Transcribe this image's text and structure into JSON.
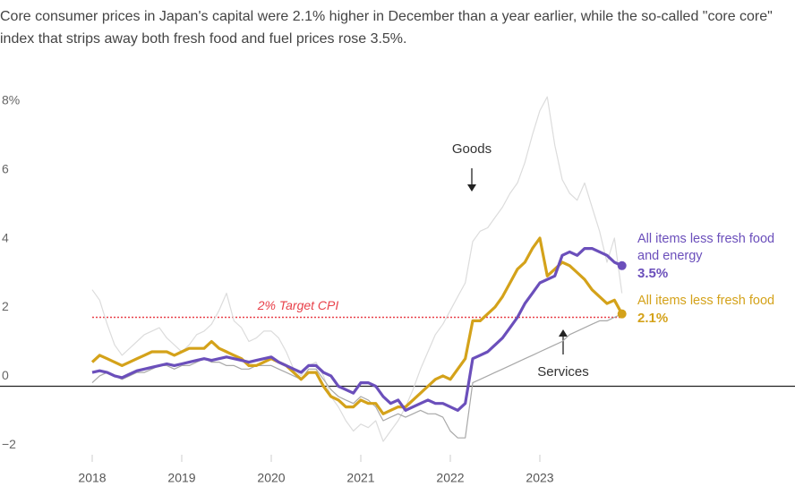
{
  "chart_data": {
    "type": "line",
    "subtitle": "Core consumer prices in Japan's capital were 2.1% higher in December than a year earlier, while the so-called \"core core\" index that strips away both fresh food and fuel prices rose 3.5%.",
    "x": [
      2018,
      2018.083,
      2018.167,
      2018.25,
      2018.333,
      2018.417,
      2018.5,
      2018.583,
      2018.667,
      2018.75,
      2018.833,
      2018.917,
      2019,
      2019.083,
      2019.167,
      2019.25,
      2019.333,
      2019.417,
      2019.5,
      2019.583,
      2019.667,
      2019.75,
      2019.833,
      2019.917,
      2020,
      2020.083,
      2020.167,
      2020.25,
      2020.333,
      2020.417,
      2020.5,
      2020.583,
      2020.667,
      2020.75,
      2020.833,
      2020.917,
      2021,
      2021.083,
      2021.167,
      2021.25,
      2021.333,
      2021.417,
      2021.5,
      2021.583,
      2021.667,
      2021.75,
      2021.833,
      2021.917,
      2022,
      2022.083,
      2022.167,
      2022.25,
      2022.333,
      2022.417,
      2022.5,
      2022.583,
      2022.667,
      2022.75,
      2022.833,
      2022.917,
      2023,
      2023.083,
      2023.167,
      2023.25,
      2023.333,
      2023.417,
      2023.5,
      2023.583,
      2023.667,
      2023.75,
      2023.833,
      2023.917
    ],
    "xlim": [
      2017,
      2024
    ],
    "xticks": [
      2018,
      2019,
      2020,
      2021,
      2022,
      2023
    ],
    "ylim": [
      -2.3,
      8.9
    ],
    "yticks": [
      {
        "value": 8,
        "label": "8%"
      },
      6,
      4,
      2,
      0,
      {
        "value": -2,
        "label": "−2"
      }
    ],
    "grid": false,
    "target": {
      "value": 2,
      "label": "2% Target CPI",
      "color": "#e8414a"
    },
    "series": [
      {
        "name": "Goods",
        "color": "#dcdcdc",
        "values": [
          2.8,
          2.5,
          1.8,
          1.2,
          0.9,
          1.1,
          1.3,
          1.5,
          1.6,
          1.7,
          1.4,
          1.2,
          1.0,
          1.2,
          1.5,
          1.6,
          1.8,
          2.2,
          2.7,
          1.9,
          1.7,
          1.3,
          1.4,
          1.6,
          1.6,
          1.4,
          1.0,
          0.5,
          0.3,
          0.6,
          0.7,
          0.3,
          -0.3,
          -0.6,
          -1.0,
          -1.3,
          -1.1,
          -1.2,
          -1.0,
          -1.6,
          -1.3,
          -1.0,
          -0.6,
          -0.1,
          0.5,
          1.0,
          1.5,
          1.8,
          2.2,
          2.6,
          3.0,
          4.2,
          4.5,
          4.6,
          4.9,
          5.2,
          5.6,
          5.9,
          6.5,
          7.3,
          8.0,
          8.4,
          7.0,
          6.0,
          5.6,
          5.4,
          5.9,
          5.2,
          4.5,
          3.6,
          4.3,
          2.7
        ]
      },
      {
        "name": "Services",
        "color": "#a8a8a8",
        "values": [
          0.1,
          0.3,
          0.4,
          0.3,
          0.2,
          0.3,
          0.4,
          0.4,
          0.5,
          0.6,
          0.6,
          0.5,
          0.6,
          0.6,
          0.7,
          0.8,
          0.7,
          0.7,
          0.6,
          0.6,
          0.5,
          0.5,
          0.6,
          0.6,
          0.6,
          0.5,
          0.4,
          0.3,
          0.2,
          0.5,
          0.5,
          0.2,
          -0.1,
          -0.3,
          -0.4,
          -0.5,
          -0.3,
          -0.4,
          -0.6,
          -1.0,
          -0.9,
          -0.8,
          -0.9,
          -0.8,
          -0.7,
          -0.8,
          -0.8,
          -0.9,
          -1.3,
          -1.5,
          -1.5,
          0.1,
          0.2,
          0.3,
          0.4,
          0.5,
          0.6,
          0.7,
          0.8,
          0.9,
          1.0,
          1.1,
          1.2,
          1.3,
          1.5,
          1.6,
          1.7,
          1.8,
          1.9,
          1.9,
          2.0,
          2.1
        ]
      },
      {
        "name": "All items less fresh food",
        "color": "#d4a21a",
        "end_label": "2.1%",
        "values": [
          0.7,
          0.9,
          0.8,
          0.7,
          0.6,
          0.7,
          0.8,
          0.9,
          1.0,
          1.0,
          1.0,
          0.9,
          1.0,
          1.1,
          1.1,
          1.1,
          1.3,
          1.1,
          1.0,
          0.9,
          0.8,
          0.6,
          0.6,
          0.7,
          0.8,
          0.7,
          0.6,
          0.4,
          0.2,
          0.4,
          0.4,
          0.0,
          -0.3,
          -0.4,
          -0.6,
          -0.6,
          -0.4,
          -0.5,
          -0.5,
          -0.8,
          -0.7,
          -0.6,
          -0.6,
          -0.4,
          -0.2,
          0.0,
          0.2,
          0.3,
          0.2,
          0.5,
          0.8,
          1.9,
          1.9,
          2.1,
          2.3,
          2.6,
          3.0,
          3.4,
          3.6,
          4.0,
          4.3,
          3.2,
          3.4,
          3.6,
          3.5,
          3.3,
          3.1,
          2.8,
          2.6,
          2.4,
          2.5,
          2.1
        ]
      },
      {
        "name": "All items less fresh food and energy",
        "color": "#6b4fbb",
        "end_label": "3.5%",
        "values": [
          0.4,
          0.45,
          0.4,
          0.3,
          0.25,
          0.35,
          0.45,
          0.5,
          0.55,
          0.6,
          0.65,
          0.6,
          0.65,
          0.7,
          0.75,
          0.8,
          0.75,
          0.8,
          0.85,
          0.8,
          0.75,
          0.7,
          0.75,
          0.8,
          0.85,
          0.7,
          0.6,
          0.5,
          0.4,
          0.6,
          0.6,
          0.4,
          0.3,
          0.0,
          -0.1,
          -0.2,
          0.1,
          0.1,
          0.0,
          -0.3,
          -0.5,
          -0.4,
          -0.7,
          -0.6,
          -0.5,
          -0.4,
          -0.5,
          -0.5,
          -0.6,
          -0.7,
          -0.5,
          0.8,
          0.9,
          1.0,
          1.2,
          1.4,
          1.7,
          2.0,
          2.4,
          2.7,
          3.0,
          3.1,
          3.2,
          3.8,
          3.9,
          3.8,
          4.0,
          4.0,
          3.9,
          3.8,
          3.6,
          3.5
        ]
      }
    ]
  }
}
